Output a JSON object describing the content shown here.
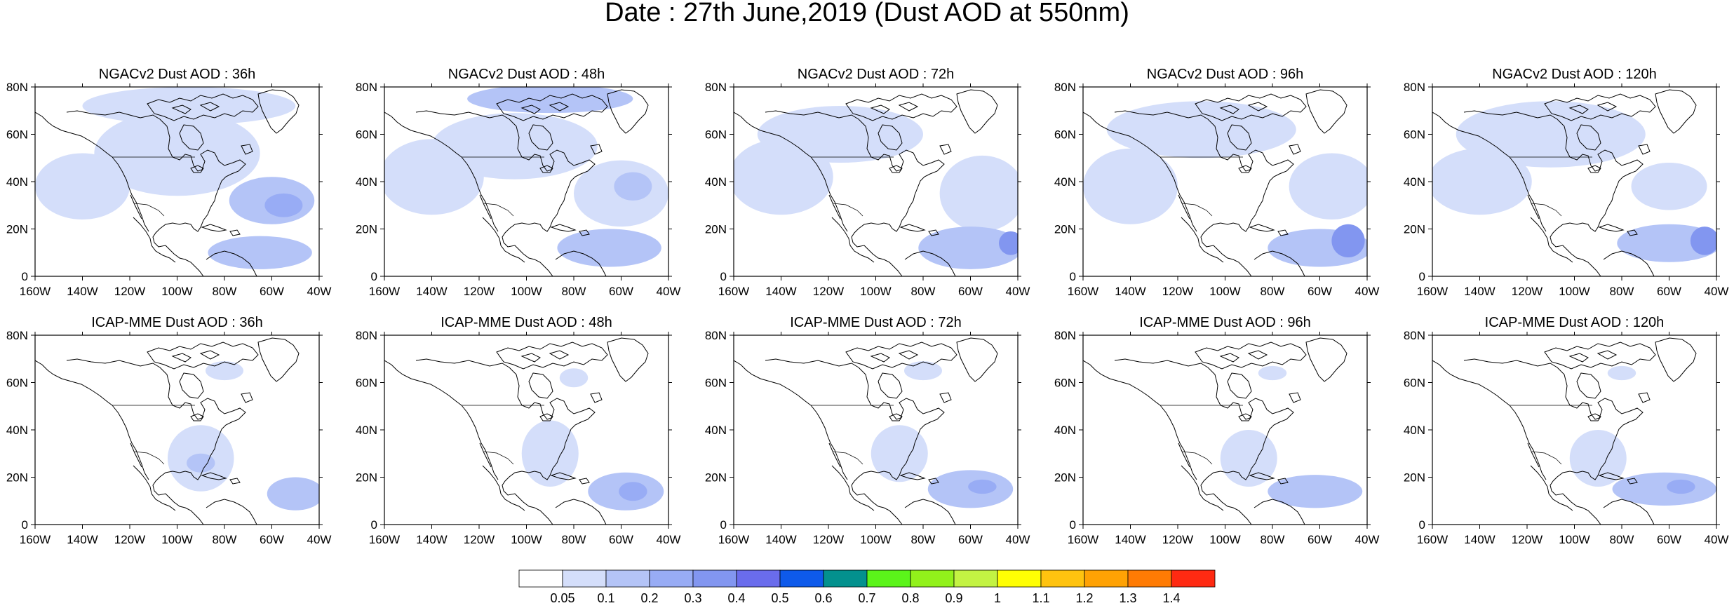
{
  "title": "Date : 27th June,2019 (Dust AOD at 550nm)",
  "x_ticks": [
    "160W",
    "140W",
    "120W",
    "100W",
    "80W",
    "60W",
    "40W"
  ],
  "y_ticks": [
    "80N",
    "60N",
    "40N",
    "20N",
    "0"
  ],
  "lon_range": [
    -160,
    -40
  ],
  "lat_range": [
    0,
    80
  ],
  "panels": [
    {
      "title": "NGACv2 Dust AOD : 36h",
      "row": 0,
      "col": 0,
      "blobs": [
        {
          "lon": -140,
          "lat": 38,
          "rlon": 20,
          "rlat": 14,
          "level": 1
        },
        {
          "lon": -100,
          "lat": 52,
          "rlon": 35,
          "rlat": 18,
          "level": 1
        },
        {
          "lon": -95,
          "lat": 72,
          "rlon": 45,
          "rlat": 8,
          "level": 1
        },
        {
          "lon": -60,
          "lat": 32,
          "rlon": 18,
          "rlat": 10,
          "level": 2
        },
        {
          "lon": -65,
          "lat": 10,
          "rlon": 22,
          "rlat": 7,
          "level": 2
        },
        {
          "lon": -55,
          "lat": 30,
          "rlon": 8,
          "rlat": 5,
          "level": 3
        }
      ]
    },
    {
      "title": "NGACv2 Dust AOD : 48h",
      "row": 0,
      "col": 1,
      "blobs": [
        {
          "lon": -140,
          "lat": 42,
          "rlon": 22,
          "rlat": 16,
          "level": 1
        },
        {
          "lon": -105,
          "lat": 55,
          "rlon": 35,
          "rlat": 14,
          "level": 1
        },
        {
          "lon": -90,
          "lat": 75,
          "rlon": 35,
          "rlat": 6,
          "level": 2
        },
        {
          "lon": -60,
          "lat": 35,
          "rlon": 20,
          "rlat": 14,
          "level": 1
        },
        {
          "lon": -65,
          "lat": 12,
          "rlon": 22,
          "rlat": 8,
          "level": 2
        },
        {
          "lon": -55,
          "lat": 38,
          "rlon": 8,
          "rlat": 6,
          "level": 2
        }
      ]
    },
    {
      "title": "NGACv2 Dust AOD : 72h",
      "row": 0,
      "col": 2,
      "blobs": [
        {
          "lon": -140,
          "lat": 42,
          "rlon": 22,
          "rlat": 16,
          "level": 1
        },
        {
          "lon": -115,
          "lat": 60,
          "rlon": 35,
          "rlat": 12,
          "level": 1
        },
        {
          "lon": -55,
          "lat": 35,
          "rlon": 18,
          "rlat": 16,
          "level": 1
        },
        {
          "lon": -60,
          "lat": 12,
          "rlon": 22,
          "rlat": 9,
          "level": 2
        },
        {
          "lon": -43,
          "lat": 14,
          "rlon": 5,
          "rlat": 5,
          "level": 4
        }
      ]
    },
    {
      "title": "NGACv2 Dust AOD : 96h",
      "row": 0,
      "col": 3,
      "blobs": [
        {
          "lon": -140,
          "lat": 38,
          "rlon": 20,
          "rlat": 16,
          "level": 1
        },
        {
          "lon": -110,
          "lat": 62,
          "rlon": 40,
          "rlat": 12,
          "level": 1
        },
        {
          "lon": -55,
          "lat": 38,
          "rlon": 18,
          "rlat": 14,
          "level": 1
        },
        {
          "lon": -60,
          "lat": 12,
          "rlon": 22,
          "rlat": 8,
          "level": 2
        },
        {
          "lon": -48,
          "lat": 15,
          "rlon": 7,
          "rlat": 7,
          "level": 4
        }
      ]
    },
    {
      "title": "NGACv2 Dust AOD : 120h",
      "row": 0,
      "col": 4,
      "blobs": [
        {
          "lon": -140,
          "lat": 40,
          "rlon": 22,
          "rlat": 14,
          "level": 1
        },
        {
          "lon": -110,
          "lat": 60,
          "rlon": 40,
          "rlat": 14,
          "level": 1
        },
        {
          "lon": -60,
          "lat": 38,
          "rlon": 16,
          "rlat": 10,
          "level": 1
        },
        {
          "lon": -60,
          "lat": 14,
          "rlon": 22,
          "rlat": 8,
          "level": 2
        },
        {
          "lon": -45,
          "lat": 15,
          "rlon": 6,
          "rlat": 6,
          "level": 4
        }
      ]
    },
    {
      "title": "ICAP-MME Dust AOD : 36h",
      "row": 1,
      "col": 0,
      "blobs": [
        {
          "lon": -90,
          "lat": 28,
          "rlon": 14,
          "rlat": 14,
          "level": 1
        },
        {
          "lon": -90,
          "lat": 26,
          "rlon": 6,
          "rlat": 4,
          "level": 2
        },
        {
          "lon": -50,
          "lat": 13,
          "rlon": 12,
          "rlat": 7,
          "level": 2
        },
        {
          "lon": -80,
          "lat": 65,
          "rlon": 8,
          "rlat": 4,
          "level": 1
        }
      ]
    },
    {
      "title": "ICAP-MME Dust AOD : 48h",
      "row": 1,
      "col": 1,
      "blobs": [
        {
          "lon": -90,
          "lat": 30,
          "rlon": 12,
          "rlat": 14,
          "level": 1
        },
        {
          "lon": -58,
          "lat": 14,
          "rlon": 16,
          "rlat": 8,
          "level": 2
        },
        {
          "lon": -55,
          "lat": 14,
          "rlon": 6,
          "rlat": 4,
          "level": 3
        },
        {
          "lon": -80,
          "lat": 62,
          "rlon": 6,
          "rlat": 4,
          "level": 1
        }
      ]
    },
    {
      "title": "ICAP-MME Dust AOD : 72h",
      "row": 1,
      "col": 2,
      "blobs": [
        {
          "lon": -90,
          "lat": 30,
          "rlon": 12,
          "rlat": 12,
          "level": 1
        },
        {
          "lon": -60,
          "lat": 15,
          "rlon": 18,
          "rlat": 8,
          "level": 2
        },
        {
          "lon": -55,
          "lat": 16,
          "rlon": 6,
          "rlat": 3,
          "level": 3
        },
        {
          "lon": -80,
          "lat": 65,
          "rlon": 8,
          "rlat": 4,
          "level": 1
        }
      ]
    },
    {
      "title": "ICAP-MME Dust AOD : 96h",
      "row": 1,
      "col": 3,
      "blobs": [
        {
          "lon": -90,
          "lat": 28,
          "rlon": 12,
          "rlat": 12,
          "level": 1
        },
        {
          "lon": -62,
          "lat": 14,
          "rlon": 20,
          "rlat": 7,
          "level": 2
        },
        {
          "lon": -80,
          "lat": 64,
          "rlon": 6,
          "rlat": 3,
          "level": 1
        }
      ]
    },
    {
      "title": "ICAP-MME Dust AOD : 120h",
      "row": 1,
      "col": 4,
      "blobs": [
        {
          "lon": -90,
          "lat": 28,
          "rlon": 12,
          "rlat": 12,
          "level": 1
        },
        {
          "lon": -62,
          "lat": 15,
          "rlon": 22,
          "rlat": 7,
          "level": 2
        },
        {
          "lon": -55,
          "lat": 16,
          "rlon": 6,
          "rlat": 3,
          "level": 3
        },
        {
          "lon": -80,
          "lat": 64,
          "rlon": 6,
          "rlat": 3,
          "level": 1
        }
      ]
    }
  ],
  "colorbar": {
    "colors": [
      "#ffffff",
      "#d4defa",
      "#b4c4f7",
      "#98acf5",
      "#8296f0",
      "#6a6cec",
      "#0e5aea",
      "#03918e",
      "#5bf41a",
      "#92f11b",
      "#c3f343",
      "#ffff04",
      "#ffc30f",
      "#ffa204",
      "#ff7b04",
      "#ff2a12"
    ],
    "labels": [
      "0.05",
      "0.1",
      "0.2",
      "0.3",
      "0.4",
      "0.5",
      "0.6",
      "0.7",
      "0.8",
      "0.9",
      "1",
      "1.1",
      "1.2",
      "1.3",
      "1.4"
    ]
  }
}
